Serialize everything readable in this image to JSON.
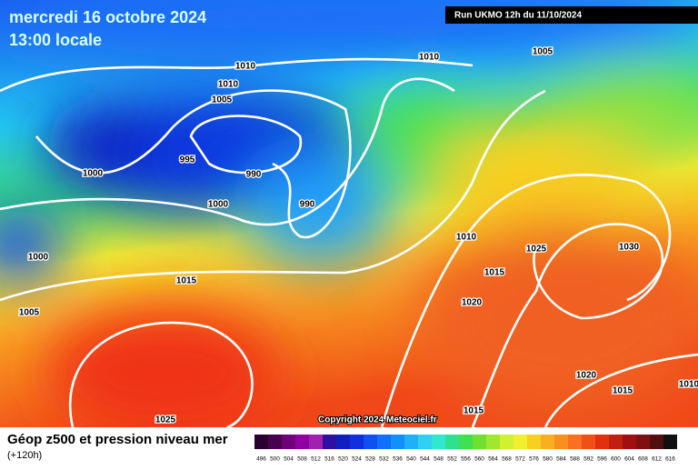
{
  "header": {
    "date": "mercredi 16 octobre 2024",
    "time": "13:00 locale",
    "run": "Run UKMO 12h du 11/10/2024"
  },
  "isobar_labels": [
    "1010",
    "1010",
    "1005",
    "1010",
    "1005",
    "995",
    "990",
    "1000",
    "1000",
    "990",
    "1010",
    "1025",
    "1030",
    "1000",
    "1015",
    "1015",
    "1020",
    "1005",
    "1020",
    "1015",
    "1010",
    "1015",
    "1025"
  ],
  "copyright": "Copyright 2024 Meteociel.fr",
  "footer": {
    "title": "Géop z500 et pression niveau mer",
    "lead": "(+120h)"
  },
  "scale": {
    "labels": [
      "496",
      "500",
      "504",
      "508",
      "512",
      "516",
      "520",
      "524",
      "528",
      "532",
      "536",
      "540",
      "544",
      "548",
      "552",
      "556",
      "560",
      "564",
      "568",
      "572",
      "576",
      "580",
      "584",
      "588",
      "592",
      "596",
      "600",
      "604",
      "608",
      "612",
      "616"
    ]
  }
}
